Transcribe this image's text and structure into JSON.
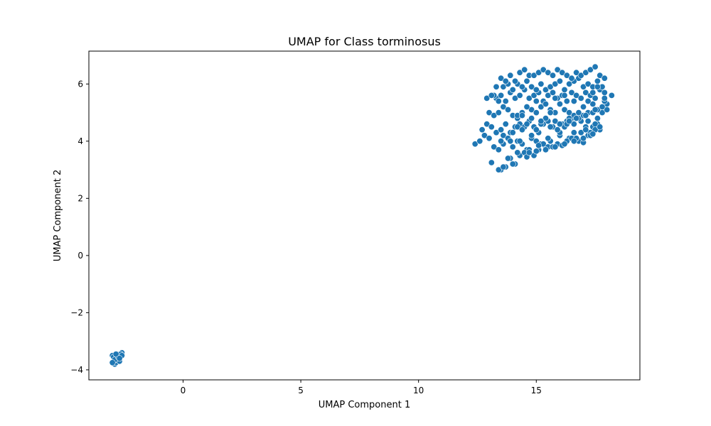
{
  "chart_data": {
    "type": "scatter",
    "title": "UMAP for Class torminosus",
    "xlabel": "UMAP Component 1",
    "ylabel": "UMAP Component 2",
    "xlim": [
      -4.0,
      19.4
    ],
    "ylim": [
      -4.35,
      7.15
    ],
    "xticks": [
      0,
      5,
      10,
      15
    ],
    "yticks": [
      -4,
      -2,
      0,
      2,
      4,
      6
    ],
    "xtick_labels": [
      "0",
      "5",
      "10",
      "15"
    ],
    "ytick_labels": [
      "−4",
      "−2",
      "0",
      "2",
      "4",
      "6"
    ],
    "grid": false,
    "legend": "none",
    "marker_color": "#1f77b4",
    "marker_edge_color": "#ffffff",
    "series": [
      {
        "x": [
          -3.0,
          -2.9,
          -2.8,
          -2.7,
          -2.6,
          -2.8,
          -2.9,
          -2.7,
          -2.75,
          -2.85,
          -2.95,
          -2.65,
          -2.8,
          -2.7,
          -2.9,
          -2.75,
          -3.0,
          -2.6,
          -2.85,
          -2.7
        ],
        "y": [
          -3.5,
          -3.6,
          -3.45,
          -3.55,
          -3.4,
          -3.7,
          -3.8,
          -3.65,
          -3.5,
          -3.75,
          -3.55,
          -3.45,
          -3.6,
          -3.7,
          -3.65,
          -3.55,
          -3.75,
          -3.5,
          -3.45,
          -3.6
        ]
      },
      {
        "x": [
          12.4,
          12.6,
          12.8,
          13.0,
          13.2,
          13.4,
          13.6,
          13.8,
          14.0,
          14.2,
          14.4,
          14.6,
          14.8,
          15.0,
          15.2,
          15.4,
          15.6,
          15.8,
          16.0,
          16.2,
          16.4,
          16.6,
          16.8,
          17.0,
          17.2,
          17.4,
          17.6,
          17.8,
          18.0,
          18.2,
          12.7,
          12.9,
          13.1,
          13.3,
          13.5,
          13.7,
          13.9,
          14.1,
          14.3,
          14.5,
          14.7,
          14.9,
          15.1,
          15.3,
          15.5,
          15.7,
          15.9,
          16.1,
          16.3,
          16.5,
          16.7,
          16.9,
          17.1,
          17.3,
          17.5,
          17.7,
          17.9,
          13.0,
          13.2,
          13.4,
          13.6,
          13.8,
          14.0,
          14.2,
          14.4,
          14.6,
          14.8,
          15.0,
          15.2,
          15.4,
          15.6,
          15.8,
          16.0,
          16.2,
          16.4,
          16.6,
          16.8,
          17.0,
          17.2,
          17.4,
          17.6,
          17.8,
          18.0,
          13.3,
          13.5,
          13.7,
          13.9,
          14.1,
          14.3,
          14.5,
          14.7,
          14.9,
          15.1,
          15.3,
          15.5,
          15.7,
          15.9,
          16.1,
          16.3,
          16.5,
          16.7,
          16.9,
          17.1,
          17.3,
          17.5,
          17.7,
          17.9,
          13.2,
          13.4,
          13.6,
          13.8,
          14.0,
          14.2,
          14.4,
          14.6,
          14.8,
          15.0,
          15.2,
          15.4,
          15.6,
          15.8,
          16.0,
          16.2,
          16.4,
          16.6,
          16.8,
          17.0,
          17.2,
          17.4,
          17.6,
          12.9,
          13.1,
          13.3,
          13.5,
          13.7,
          13.9,
          14.1,
          14.3,
          14.5,
          14.7,
          14.9,
          15.1,
          15.3,
          15.5,
          15.7,
          15.9,
          16.1,
          16.3,
          16.5,
          16.7,
          16.9,
          17.1,
          17.3,
          17.5,
          17.7,
          17.9,
          13.6,
          13.8,
          14.0,
          14.2,
          14.4,
          14.6,
          14.8,
          15.0,
          15.2,
          15.4,
          15.6,
          15.8,
          16.0,
          16.2,
          16.4,
          16.6,
          16.8,
          17.0,
          17.2,
          17.4,
          17.6,
          17.8,
          13.5,
          13.7,
          13.9,
          14.1,
          14.3,
          14.5,
          14.7,
          14.9,
          15.1,
          15.3,
          15.5,
          15.7,
          15.9,
          16.1,
          16.3,
          16.5,
          16.7,
          16.9,
          17.1,
          17.3,
          17.5,
          17.7,
          14.2,
          14.6,
          15.0,
          15.4,
          15.8,
          16.2,
          16.6,
          17.0,
          17.4,
          17.8,
          13.4,
          13.8,
          14.2,
          14.6,
          15.0,
          15.4,
          15.8,
          16.2,
          16.6,
          17.0,
          17.4,
          13.1,
          13.5,
          13.9,
          14.3,
          14.7,
          15.1,
          15.5,
          15.9,
          16.3,
          16.7,
          17.1,
          17.5,
          17.9,
          13.6,
          14.0,
          14.4,
          14.8,
          15.2,
          15.6,
          16.0,
          16.4,
          16.8,
          17.2,
          17.6
        ],
        "y": [
          3.9,
          4.0,
          4.2,
          4.1,
          3.8,
          3.7,
          3.9,
          4.1,
          3.8,
          4.0,
          3.9,
          3.7,
          4.1,
          4.0,
          3.9,
          3.8,
          4.0,
          3.8,
          4.2,
          3.9,
          4.1,
          4.3,
          4.0,
          3.95,
          4.2,
          4.5,
          4.6,
          5.0,
          5.3,
          5.6,
          4.4,
          4.6,
          4.5,
          4.3,
          4.4,
          4.6,
          4.3,
          4.5,
          4.6,
          4.5,
          4.7,
          4.5,
          4.3,
          4.6,
          4.7,
          4.5,
          4.4,
          4.6,
          4.7,
          4.8,
          4.9,
          4.7,
          4.5,
          4.3,
          4.6,
          4.4,
          5.4,
          5.0,
          4.9,
          5.0,
          5.2,
          5.1,
          4.9,
          4.8,
          5.0,
          5.2,
          5.1,
          5.0,
          5.2,
          5.3,
          5.1,
          5.0,
          5.3,
          5.1,
          5.0,
          4.9,
          5.0,
          5.2,
          5.0,
          5.3,
          5.1,
          5.2,
          5.1,
          5.5,
          5.6,
          5.4,
          5.7,
          5.5,
          5.6,
          5.8,
          5.5,
          5.6,
          5.7,
          5.4,
          5.6,
          5.7,
          5.5,
          5.6,
          5.4,
          5.7,
          5.6,
          5.5,
          5.7,
          5.6,
          5.5,
          5.8,
          5.7,
          5.6,
          5.4,
          5.9,
          6.0,
          5.8,
          6.0,
          5.9,
          6.1,
          5.9,
          5.8,
          6.0,
          5.8,
          5.9,
          6.0,
          6.1,
          5.8,
          6.0,
          6.1,
          6.2,
          5.9,
          6.0,
          5.9,
          6.1,
          5.5,
          5.6,
          5.9,
          6.2,
          6.1,
          6.3,
          6.1,
          6.4,
          6.5,
          6.3,
          6.3,
          6.4,
          6.5,
          6.4,
          6.3,
          6.5,
          6.4,
          6.3,
          6.2,
          6.4,
          6.3,
          6.4,
          6.5,
          6.6,
          6.3,
          6.2,
          4.2,
          4.1,
          4.3,
          4.5,
          4.4,
          4.6,
          4.2,
          4.4,
          4.6,
          4.8,
          4.5,
          4.7,
          4.3,
          4.5,
          4.8,
          4.6,
          4.8,
          4.9,
          4.7,
          5.0,
          4.8,
          5.2,
          3.0,
          3.1,
          3.4,
          3.2,
          3.5,
          3.6,
          3.7,
          3.5,
          3.7,
          3.9,
          3.8,
          3.8,
          3.9,
          3.85,
          4.0,
          4.1,
          4.1,
          4.3,
          4.4,
          4.2,
          4.4,
          4.5,
          4.9,
          5.2,
          5.4,
          5.3,
          5.5,
          5.6,
          5.4,
          5.2,
          5.7,
          5.9,
          3.0,
          3.4,
          3.6,
          3.45,
          3.65,
          3.7,
          3.8,
          3.9,
          4.0,
          4.1,
          4.25,
          3.25,
          4.0,
          4.0,
          4.0,
          3.6,
          3.85,
          4.1,
          4.4,
          4.6,
          4.8,
          4.9,
          5.1,
          5.5,
          3.1,
          3.2,
          4.9,
          4.8,
          4.7,
          5.0,
          4.6,
          4.7,
          5.0,
          5.4,
          5.9
        ]
      }
    ]
  }
}
